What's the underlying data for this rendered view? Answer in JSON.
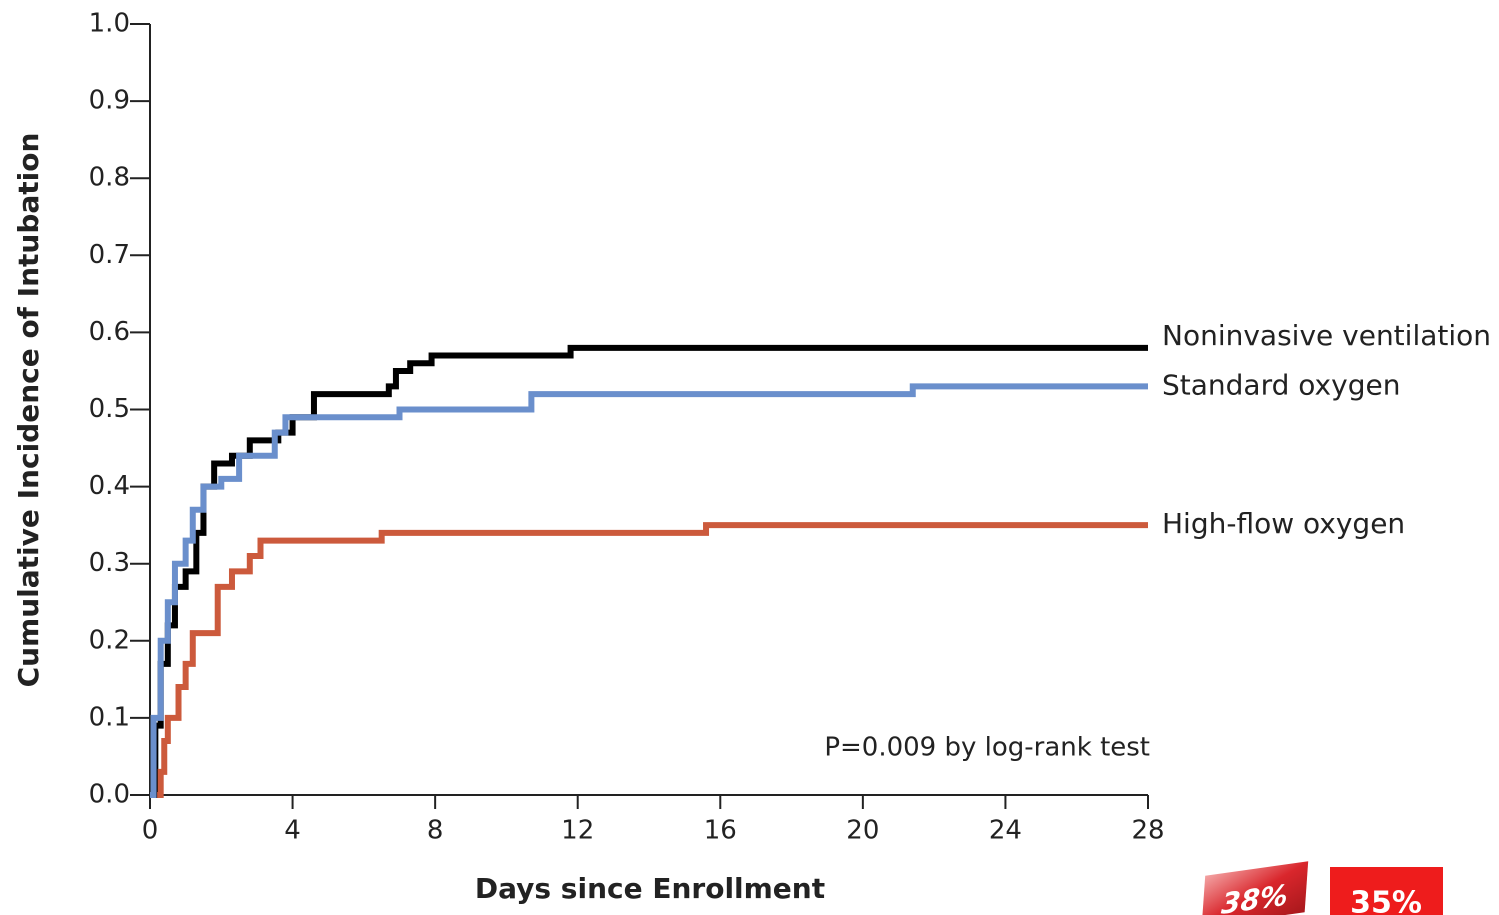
{
  "chart_data": {
    "type": "step-line",
    "step": "post",
    "ylabel": "Cumulative Incidence of Intubation",
    "xlabel": "Days since Enrollment",
    "annotation": "P=0.009 by log-rank test",
    "badges": [
      "38%",
      "35%"
    ],
    "xlim": [
      0,
      28
    ],
    "xticks": [
      0,
      4,
      8,
      12,
      16,
      20,
      24,
      28
    ],
    "ylim": [
      0,
      1
    ],
    "yticks": [
      {
        "value": 0,
        "label": "0.0"
      },
      0.1,
      0.2,
      0.3,
      0.4,
      0.5,
      0.6,
      0.7,
      0.8,
      0.9,
      {
        "value": 1,
        "label": "1.0"
      }
    ],
    "series": [
      {
        "name": "Noninvasive ventilation",
        "color": "#000000",
        "x": [
          0,
          0.15,
          0.3,
          0.5,
          0.7,
          1.0,
          1.3,
          1.5,
          1.8,
          2.3,
          2.8,
          3.6,
          4.0,
          4.6,
          6.7,
          6.9,
          7.3,
          7.9,
          11.8,
          28
        ],
        "values": [
          0,
          0.09,
          0.17,
          0.22,
          0.27,
          0.29,
          0.34,
          0.4,
          0.43,
          0.44,
          0.46,
          0.47,
          0.49,
          0.52,
          0.53,
          0.55,
          0.56,
          0.57,
          0.58,
          0.58
        ]
      },
      {
        "name": "Standard oxygen",
        "color": "#6a8fcc",
        "x": [
          0,
          0.1,
          0.3,
          0.5,
          0.7,
          1.0,
          1.2,
          1.5,
          2.0,
          2.5,
          3.5,
          3.8,
          7.0,
          10.7,
          21.4,
          28
        ],
        "values": [
          0,
          0.1,
          0.2,
          0.25,
          0.3,
          0.33,
          0.37,
          0.4,
          0.41,
          0.44,
          0.47,
          0.49,
          0.5,
          0.52,
          0.53,
          0.53
        ]
      },
      {
        "name": "High-flow oxygen",
        "color": "#cc5a3c",
        "x": [
          0.2,
          0.3,
          0.4,
          0.5,
          0.8,
          1.0,
          1.2,
          1.9,
          2.3,
          2.8,
          3.1,
          6.5,
          15.6,
          28
        ],
        "values": [
          0,
          0.03,
          0.07,
          0.1,
          0.14,
          0.17,
          0.21,
          0.27,
          0.29,
          0.31,
          0.33,
          0.34,
          0.35,
          0.35
        ]
      }
    ]
  }
}
